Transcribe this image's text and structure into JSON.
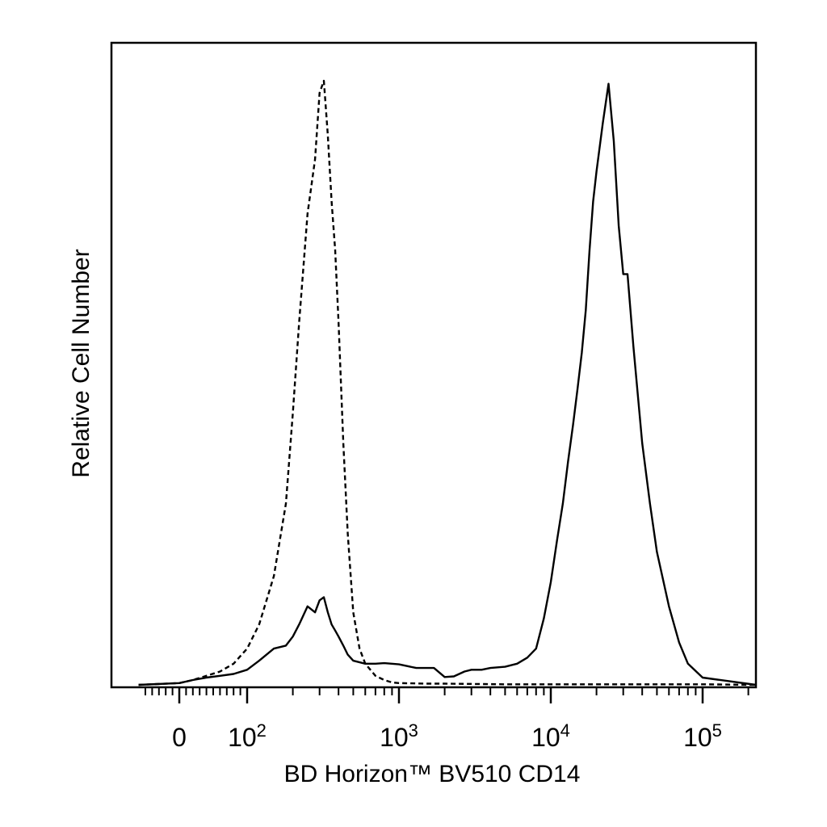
{
  "chart_data": {
    "type": "area",
    "title": "",
    "xlabel": "BD Horizon™ BV510 CD14",
    "ylabel": "Relative Cell Number",
    "x_scale": "biexponential",
    "xlim": [
      -60,
      250000
    ],
    "ylim": [
      0,
      105
    ],
    "grid": false,
    "legend": "none",
    "x_tick_labels": [
      {
        "value": 0,
        "base": "0",
        "exp": ""
      },
      {
        "value": 100,
        "base": "10",
        "exp": "2"
      },
      {
        "value": 1000,
        "base": "10",
        "exp": "3"
      },
      {
        "value": 10000,
        "base": "10",
        "exp": "4"
      },
      {
        "value": 100000,
        "base": "10",
        "exp": "5"
      }
    ],
    "series": [
      {
        "style": "dashed",
        "color": "#000000",
        "x": [
          -60,
          0,
          20,
          40,
          60,
          80,
          100,
          120,
          150,
          180,
          200,
          220,
          250,
          280,
          300,
          320,
          340,
          360,
          380,
          400,
          430,
          460,
          500,
          550,
          600,
          700,
          800,
          900,
          1000,
          1500,
          2000,
          5000,
          10000,
          30000,
          100000,
          250000
        ],
        "y": [
          0,
          0.3,
          0.8,
          1.5,
          2.2,
          3.5,
          6,
          10,
          18,
          30,
          45,
          60,
          78,
          87,
          98,
          100,
          91,
          80,
          72,
          60,
          40,
          25,
          12,
          6,
          3.5,
          1.5,
          0.8,
          0.4,
          0.3,
          0.2,
          0.2,
          0.1,
          0.1,
          0.1,
          0.1,
          0
        ]
      },
      {
        "style": "solid",
        "color": "#000000",
        "x": [
          -60,
          0,
          20,
          40,
          60,
          80,
          100,
          120,
          150,
          180,
          200,
          220,
          250,
          280,
          300,
          320,
          340,
          360,
          380,
          400,
          430,
          460,
          500,
          600,
          700,
          800,
          1000,
          1300,
          1700,
          2000,
          2300,
          2700,
          3000,
          3500,
          4000,
          5000,
          6000,
          7000,
          8000,
          9000,
          10000,
          11000,
          12000,
          13000,
          14000,
          15000,
          16000,
          17000,
          18000,
          19000,
          20000,
          22000,
          24000,
          26000,
          28000,
          30000,
          32000,
          35000,
          40000,
          45000,
          50000,
          60000,
          70000,
          80000,
          100000,
          250000
        ],
        "y": [
          0,
          0.3,
          0.8,
          1.2,
          1.5,
          1.8,
          2.5,
          4,
          6,
          6.5,
          8,
          10,
          13,
          12,
          14,
          14.5,
          12,
          10,
          9,
          8,
          6.5,
          5,
          4,
          3.5,
          3.5,
          3.6,
          3.4,
          2.8,
          2.8,
          1.3,
          1.4,
          2.2,
          2.5,
          2.5,
          2.8,
          3,
          3.5,
          4.5,
          6,
          11,
          17,
          24,
          30,
          37,
          43,
          49,
          55,
          62,
          72,
          80,
          85,
          93,
          99.5,
          90,
          76,
          68,
          68,
          56,
          40,
          30,
          22,
          13,
          7,
          3.5,
          1.2,
          0
        ]
      }
    ]
  }
}
